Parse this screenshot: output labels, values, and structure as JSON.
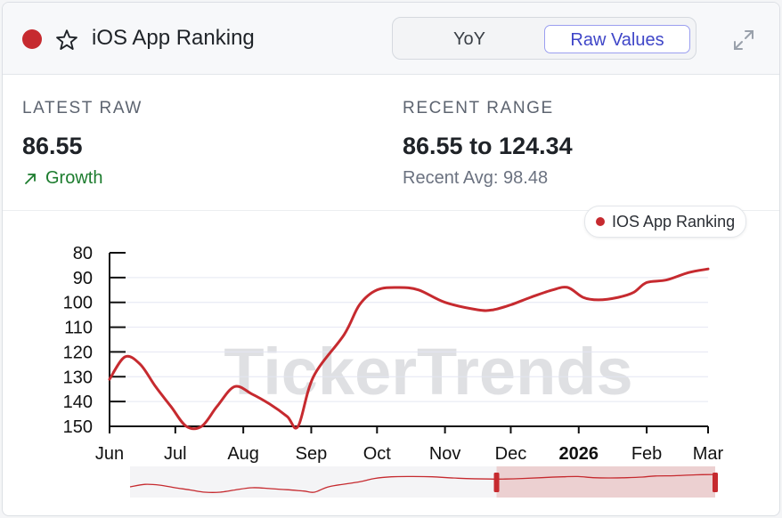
{
  "header": {
    "title": "iOS App Ranking",
    "toggle": {
      "yoy_label": "YoY",
      "raw_label": "Raw Values",
      "active": "Raw Values"
    },
    "icons": [
      "status-dot",
      "star-icon",
      "expand-icon"
    ]
  },
  "stats": {
    "latest_label": "LATEST RAW",
    "latest_value": "86.55",
    "trend_label": "Growth",
    "range_label": "RECENT RANGE",
    "range_value": "86.55 to 124.34",
    "avg_text": "Recent Avg: 98.48"
  },
  "legend": {
    "label": "IOS App Ranking"
  },
  "watermark": "TickerTrends",
  "colors": {
    "series": "#c62a2f",
    "growth": "#1c7c2e",
    "accent": "#3f46c8"
  },
  "chart_data": {
    "type": "line",
    "title": "",
    "xlabel": "",
    "ylabel": "",
    "y_inverted": true,
    "ylim": [
      80,
      150
    ],
    "yticks": [
      80,
      90,
      100,
      110,
      120,
      130,
      140,
      150
    ],
    "xlim": [
      "2025-06-01",
      "2026-03-01"
    ],
    "xticks": [
      {
        "x": "2025-06-01",
        "label": "Jun"
      },
      {
        "x": "2025-07-01",
        "label": "Jul"
      },
      {
        "x": "2025-08-01",
        "label": "Aug"
      },
      {
        "x": "2025-09-01",
        "label": "Sep"
      },
      {
        "x": "2025-10-01",
        "label": "Oct"
      },
      {
        "x": "2025-11-01",
        "label": "Nov"
      },
      {
        "x": "2025-12-01",
        "label": "Dec"
      },
      {
        "x": "2026-01-01",
        "label": "2026",
        "bold": true
      },
      {
        "x": "2026-02-01",
        "label": "Feb"
      },
      {
        "x": "2026-03-01",
        "label": "Mar"
      }
    ],
    "grid": true,
    "legend_position": "top-right",
    "series": [
      {
        "name": "IOS App Ranking",
        "color": "#c62a2f",
        "points": [
          {
            "x": "2025-06-01",
            "y": 131
          },
          {
            "x": "2025-06-08",
            "y": 122
          },
          {
            "x": "2025-06-15",
            "y": 125
          },
          {
            "x": "2025-06-22",
            "y": 134
          },
          {
            "x": "2025-06-29",
            "y": 142
          },
          {
            "x": "2025-07-06",
            "y": 150
          },
          {
            "x": "2025-07-13",
            "y": 150
          },
          {
            "x": "2025-07-20",
            "y": 142
          },
          {
            "x": "2025-07-28",
            "y": 134
          },
          {
            "x": "2025-08-05",
            "y": 137
          },
          {
            "x": "2025-08-13",
            "y": 141
          },
          {
            "x": "2025-08-21",
            "y": 146
          },
          {
            "x": "2025-08-26",
            "y": 150
          },
          {
            "x": "2025-09-02",
            "y": 130
          },
          {
            "x": "2025-09-16",
            "y": 113
          },
          {
            "x": "2025-09-23",
            "y": 101
          },
          {
            "x": "2025-10-01",
            "y": 95
          },
          {
            "x": "2025-10-11",
            "y": 94
          },
          {
            "x": "2025-10-20",
            "y": 95
          },
          {
            "x": "2025-11-01",
            "y": 100
          },
          {
            "x": "2025-11-16",
            "y": 103
          },
          {
            "x": "2025-11-23",
            "y": 103
          },
          {
            "x": "2025-12-01",
            "y": 101
          },
          {
            "x": "2025-12-10",
            "y": 98
          },
          {
            "x": "2025-12-20",
            "y": 95
          },
          {
            "x": "2025-12-27",
            "y": 94
          },
          {
            "x": "2026-01-03",
            "y": 98
          },
          {
            "x": "2026-01-10",
            "y": 99
          },
          {
            "x": "2026-01-19",
            "y": 98
          },
          {
            "x": "2026-01-26",
            "y": 96
          },
          {
            "x": "2026-02-01",
            "y": 92
          },
          {
            "x": "2026-02-10",
            "y": 91
          },
          {
            "x": "2026-02-20",
            "y": 88
          },
          {
            "x": "2026-03-01",
            "y": 86.55
          }
        ]
      }
    ],
    "navigator": {
      "selected_range": [
        "2025-11-19",
        "2026-03-01"
      ]
    }
  }
}
